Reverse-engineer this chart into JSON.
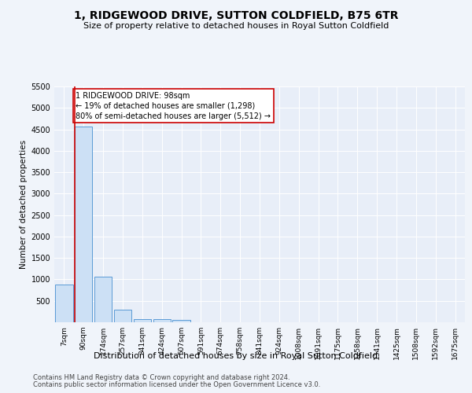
{
  "title": "1, RIDGEWOOD DRIVE, SUTTON COLDFIELD, B75 6TR",
  "subtitle": "Size of property relative to detached houses in Royal Sutton Coldfield",
  "xlabel": "Distribution of detached houses by size in Royal Sutton Coldfield",
  "ylabel": "Number of detached properties",
  "bar_color": "#cce0f5",
  "bar_edge_color": "#5b9bd5",
  "vline_color": "#cc0000",
  "vline_x": 1,
  "annotation_text": "1 RIDGEWOOD DRIVE: 98sqm\n← 19% of detached houses are smaller (1,298)\n80% of semi-detached houses are larger (5,512) →",
  "annotation_box_color": "#cc0000",
  "bin_labels": [
    "7sqm",
    "90sqm",
    "174sqm",
    "257sqm",
    "341sqm",
    "424sqm",
    "507sqm",
    "591sqm",
    "674sqm",
    "758sqm",
    "841sqm",
    "924sqm",
    "1008sqm",
    "1091sqm",
    "1175sqm",
    "1258sqm",
    "1341sqm",
    "1425sqm",
    "1508sqm",
    "1592sqm",
    "1675sqm"
  ],
  "bar_heights": [
    880,
    4560,
    1060,
    285,
    80,
    80,
    50,
    0,
    0,
    0,
    0,
    0,
    0,
    0,
    0,
    0,
    0,
    0,
    0,
    0,
    0
  ],
  "ylim": [
    0,
    5500
  ],
  "yticks": [
    0,
    500,
    1000,
    1500,
    2000,
    2500,
    3000,
    3500,
    4000,
    4500,
    5000,
    5500
  ],
  "footnote1": "Contains HM Land Registry data © Crown copyright and database right 2024.",
  "footnote2": "Contains public sector information licensed under the Open Government Licence v3.0.",
  "background_color": "#f0f4fa",
  "plot_bg_color": "#e8eef8",
  "grid_color": "#ffffff",
  "title_fontsize": 10,
  "subtitle_fontsize": 8,
  "ylabel_fontsize": 7.5,
  "xlabel_fontsize": 8,
  "tick_fontsize": 7,
  "annot_fontsize": 7,
  "footnote_fontsize": 6
}
